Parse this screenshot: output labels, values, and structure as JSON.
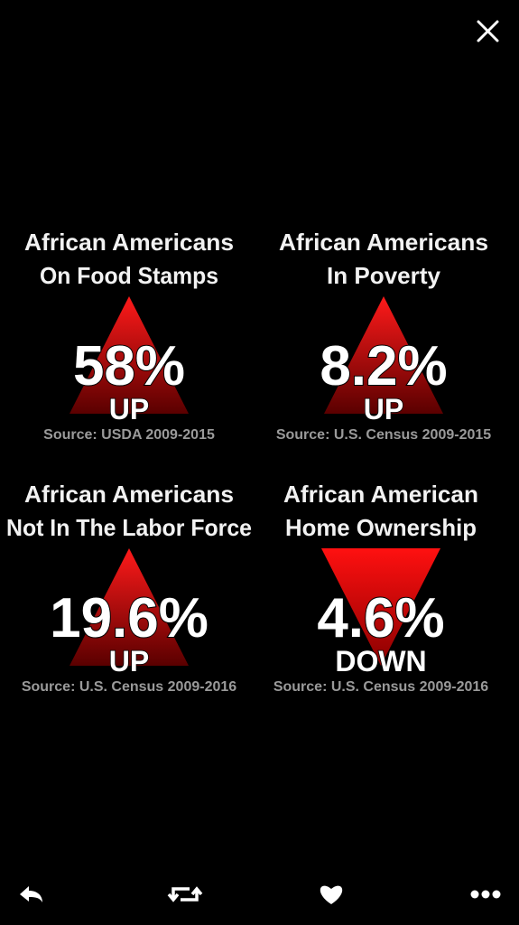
{
  "panels": [
    {
      "title": [
        "African Americans",
        "On Food Stamps"
      ],
      "value": "58%",
      "direction": "UP",
      "source": "Source: USDA 2009-2015"
    },
    {
      "title": [
        "African Americans",
        "In Poverty"
      ],
      "value": "8.2%",
      "direction": "UP",
      "source": "Source: U.S. Census 2009-2015"
    },
    {
      "title": [
        "African Americans",
        "Not In The Labor Force"
      ],
      "value": "19.6%",
      "direction": "UP",
      "source": "Source: U.S. Census 2009-2016"
    },
    {
      "title": [
        "African American",
        "Home Ownership"
      ],
      "value": "4.6%",
      "direction": "DOWN",
      "source": "Source: U.S. Census 2009-2016"
    }
  ]
}
